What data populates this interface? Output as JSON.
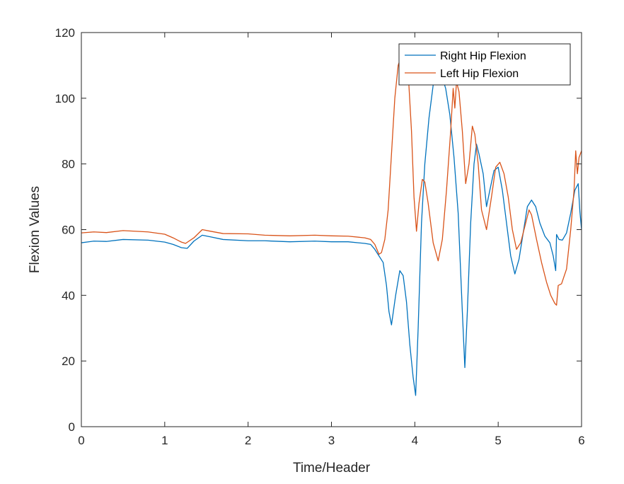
{
  "chart_data": {
    "type": "line",
    "title": "",
    "xlabel": "Time/Header",
    "ylabel": "Flexion Values",
    "xlim": [
      0,
      6
    ],
    "ylim": [
      0,
      120
    ],
    "xticks": [
      0,
      1,
      2,
      3,
      4,
      5,
      6
    ],
    "yticks": [
      0,
      20,
      40,
      60,
      80,
      100,
      120
    ],
    "grid": false,
    "box": true,
    "legend_placement": "top-right",
    "series": [
      {
        "name": "Right Hip Flexion",
        "color": "#0072BD",
        "x": [
          0,
          0.15,
          0.3,
          0.5,
          0.8,
          1.0,
          1.1,
          1.2,
          1.27,
          1.35,
          1.45,
          1.55,
          1.7,
          2.0,
          2.2,
          2.5,
          2.8,
          3.0,
          3.2,
          3.4,
          3.47,
          3.52,
          3.57,
          3.62,
          3.66,
          3.69,
          3.72,
          3.77,
          3.82,
          3.86,
          3.9,
          3.94,
          3.98,
          4.01,
          4.04,
          4.08,
          4.12,
          4.17,
          4.22,
          4.27,
          4.32,
          4.37,
          4.42,
          4.47,
          4.52,
          4.57,
          4.6,
          4.63,
          4.67,
          4.71,
          4.74,
          4.77,
          4.82,
          4.86,
          4.9,
          4.95,
          5.0,
          5.05,
          5.1,
          5.15,
          5.2,
          5.25,
          5.3,
          5.35,
          5.4,
          5.45,
          5.5,
          5.56,
          5.62,
          5.66,
          5.69,
          5.7,
          5.73,
          5.77,
          5.82,
          5.87,
          5.92,
          5.96,
          5.98,
          6.0
        ],
        "values": [
          56,
          56.5,
          56.4,
          57,
          56.8,
          56.2,
          55.5,
          54.5,
          54.3,
          56.5,
          58.3,
          57.8,
          57,
          56.6,
          56.6,
          56.3,
          56.5,
          56.3,
          56.3,
          55.8,
          55.5,
          54,
          52,
          50,
          43,
          35,
          31,
          40,
          47.5,
          46,
          38,
          25,
          15,
          9.5,
          30,
          62,
          80,
          94,
          104,
          107,
          107,
          103,
          95,
          82,
          65,
          35,
          18,
          35,
          62,
          80,
          86,
          83,
          77,
          67,
          72,
          78,
          79,
          72,
          62,
          52,
          46.5,
          51,
          59,
          67,
          69,
          67,
          62,
          58,
          56,
          52,
          47.5,
          58.5,
          57,
          56.8,
          59,
          65,
          72,
          74,
          65.5,
          60
        ]
      },
      {
        "name": "Left Hip Flexion",
        "color": "#D95319",
        "x": [
          0,
          0.15,
          0.3,
          0.5,
          0.8,
          1.0,
          1.1,
          1.2,
          1.25,
          1.35,
          1.45,
          1.55,
          1.7,
          2.0,
          2.2,
          2.5,
          2.8,
          3.0,
          3.2,
          3.4,
          3.47,
          3.52,
          3.57,
          3.6,
          3.64,
          3.68,
          3.72,
          3.76,
          3.8,
          3.84,
          3.88,
          3.92,
          3.96,
          3.99,
          4.02,
          4.05,
          4.09,
          4.12,
          4.16,
          4.22,
          4.28,
          4.33,
          4.38,
          4.43,
          4.46,
          4.48,
          4.5,
          4.53,
          4.57,
          4.61,
          4.65,
          4.69,
          4.72,
          4.76,
          4.8,
          4.86,
          4.92,
          4.97,
          5.02,
          5.07,
          5.12,
          5.17,
          5.22,
          5.27,
          5.32,
          5.37,
          5.4,
          5.46,
          5.52,
          5.58,
          5.63,
          5.68,
          5.7,
          5.72,
          5.76,
          5.82,
          5.87,
          5.91,
          5.93,
          5.95,
          5.97,
          6.0
        ],
        "values": [
          59,
          59.3,
          59.1,
          59.7,
          59.3,
          58.6,
          57.5,
          56.2,
          55.8,
          57.5,
          60,
          59.5,
          58.8,
          58.7,
          58.3,
          58.1,
          58.3,
          58.1,
          58,
          57.5,
          57,
          55.5,
          52.5,
          53,
          57,
          66,
          83,
          100,
          110,
          113,
          112,
          108,
          90,
          70,
          59.5,
          68,
          75.3,
          74.5,
          68,
          56,
          50.5,
          57,
          72,
          90,
          103,
          97,
          105,
          102,
          90,
          74,
          80,
          91.5,
          89,
          80,
          66,
          60,
          70,
          79,
          80.5,
          77,
          70,
          60,
          54,
          56,
          61,
          66,
          64.5,
          57,
          50,
          44,
          40,
          37.5,
          37,
          43,
          43.5,
          48,
          60,
          72,
          84,
          77,
          82,
          84
        ]
      }
    ]
  }
}
